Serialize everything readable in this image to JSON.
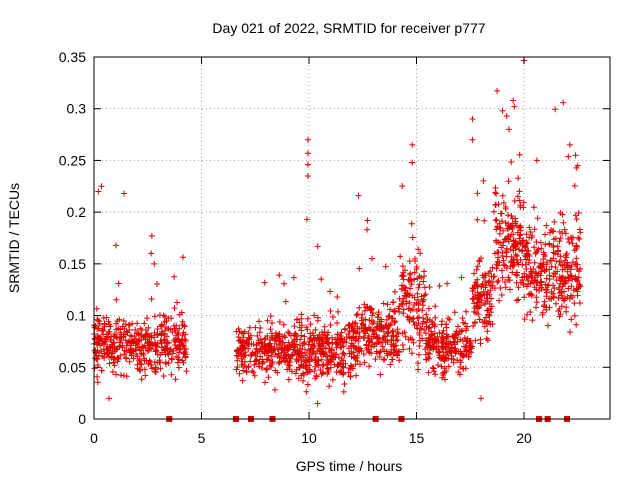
{
  "chart_data": {
    "type": "scatter",
    "title": "Day 021 of 2022, SRMTID for receiver p777",
    "xlabel": "GPS time / hours",
    "ylabel": "SRMTID / TECUs",
    "xlim": [
      0,
      24
    ],
    "ylim": [
      0,
      0.35
    ],
    "xticks": [
      0,
      5,
      10,
      15,
      20
    ],
    "xtick_labels": [
      "0",
      "5",
      "10",
      "15",
      "20"
    ],
    "yticks": [
      0,
      0.05,
      0.1,
      0.15,
      0.2,
      0.25,
      0.3,
      0.35
    ],
    "ytick_labels": [
      "0",
      "0.05",
      "0.1",
      "0.15",
      "0.2",
      "0.25",
      "0.3",
      "0.35"
    ],
    "grid": true,
    "marker": "plus",
    "color": "#e00000",
    "series_name": "SRMTID",
    "gap_markers_x": [
      3.5,
      6.6,
      7.3,
      8.3,
      13.1,
      14.3,
      20.7,
      21.1,
      22.0
    ],
    "clusters": [
      {
        "t_start": 0.0,
        "t_end": 4.3,
        "center": 0.07,
        "spread": 0.025,
        "n": 420
      },
      {
        "t_start": 6.6,
        "t_end": 9.0,
        "center": 0.065,
        "spread": 0.022,
        "n": 230
      },
      {
        "t_start": 9.0,
        "t_end": 12.0,
        "center": 0.065,
        "spread": 0.025,
        "n": 330
      },
      {
        "t_start": 12.0,
        "t_end": 14.2,
        "center": 0.08,
        "spread": 0.028,
        "n": 230
      },
      {
        "t_start": 14.2,
        "t_end": 15.4,
        "center": 0.11,
        "spread": 0.04,
        "n": 120
      },
      {
        "t_start": 15.4,
        "t_end": 17.6,
        "center": 0.07,
        "spread": 0.025,
        "n": 230
      },
      {
        "t_start": 17.6,
        "t_end": 18.6,
        "center": 0.12,
        "spread": 0.035,
        "n": 110
      },
      {
        "t_start": 18.6,
        "t_end": 20.0,
        "center": 0.17,
        "spread": 0.045,
        "n": 170
      },
      {
        "t_start": 20.0,
        "t_end": 21.6,
        "center": 0.14,
        "spread": 0.04,
        "n": 170
      },
      {
        "t_start": 21.6,
        "t_end": 22.7,
        "center": 0.14,
        "spread": 0.04,
        "n": 130
      }
    ],
    "notable_points": [
      {
        "x": 0.2,
        "y": 0.22
      },
      {
        "x": 0.35,
        "y": 0.225
      },
      {
        "x": 1.4,
        "y": 0.218
      },
      {
        "x": 2.8,
        "y": 0.15
      },
      {
        "x": 9.95,
        "y": 0.27
      },
      {
        "x": 9.95,
        "y": 0.257
      },
      {
        "x": 9.95,
        "y": 0.246
      },
      {
        "x": 9.95,
        "y": 0.235
      },
      {
        "x": 9.9,
        "y": 0.193
      },
      {
        "x": 12.3,
        "y": 0.216
      },
      {
        "x": 12.7,
        "y": 0.183
      },
      {
        "x": 14.8,
        "y": 0.265
      },
      {
        "x": 14.8,
        "y": 0.248
      },
      {
        "x": 17.6,
        "y": 0.29
      },
      {
        "x": 17.6,
        "y": 0.27
      },
      {
        "x": 19.0,
        "y": 0.298
      },
      {
        "x": 19.2,
        "y": 0.293
      },
      {
        "x": 19.5,
        "y": 0.308
      },
      {
        "x": 19.55,
        "y": 0.302
      },
      {
        "x": 19.3,
        "y": 0.28
      },
      {
        "x": 20.6,
        "y": 0.25
      },
      {
        "x": 22.4,
        "y": 0.255
      },
      {
        "x": 22.5,
        "y": 0.245
      },
      {
        "x": 18.0,
        "y": 0.02
      },
      {
        "x": 0.7,
        "y": 0.02
      },
      {
        "x": 10.4,
        "y": 0.015
      }
    ]
  }
}
